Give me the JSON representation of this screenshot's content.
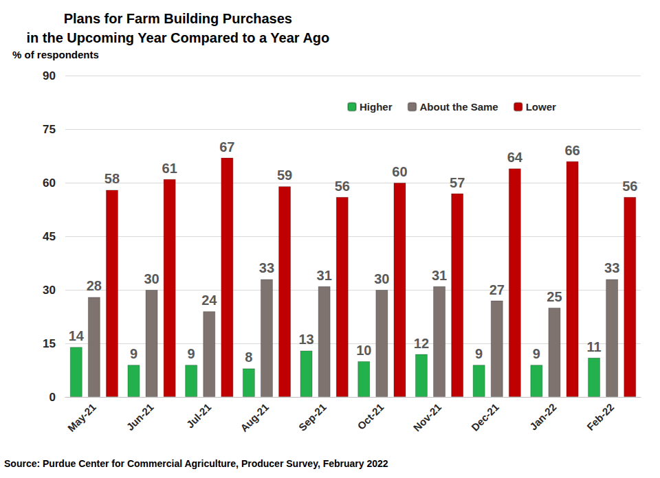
{
  "chart_data": {
    "type": "bar",
    "title": "Plans for Farm Building Purchases\nin the Upcoming Year Compared to a Year Ago",
    "ylabel": "% of respondents",
    "source": "Source: Purdue Center for Commercial Agriculture, Producer Survey, February 2022",
    "categories": [
      "May-21",
      "Jun-21",
      "Jul-21",
      "Aug-21",
      "Sep-21",
      "Oct-21",
      "Nov-21",
      "Dec-21",
      "Jan-22",
      "Feb-22"
    ],
    "series": [
      {
        "name": "Higher",
        "color": "#22b14c",
        "values": [
          14,
          9,
          9,
          8,
          13,
          10,
          12,
          9,
          9,
          11
        ]
      },
      {
        "name": "About the Same",
        "color": "#7f7370",
        "values": [
          28,
          30,
          24,
          33,
          31,
          30,
          31,
          27,
          25,
          33
        ]
      },
      {
        "name": "Lower",
        "color": "#c00000",
        "values": [
          58,
          61,
          67,
          59,
          56,
          60,
          57,
          64,
          66,
          56
        ]
      }
    ],
    "ylim": [
      0,
      90
    ],
    "yticks": [
      0,
      15,
      30,
      45,
      60,
      75,
      90
    ],
    "grid": true,
    "legend": "top",
    "data_labels": true
  }
}
